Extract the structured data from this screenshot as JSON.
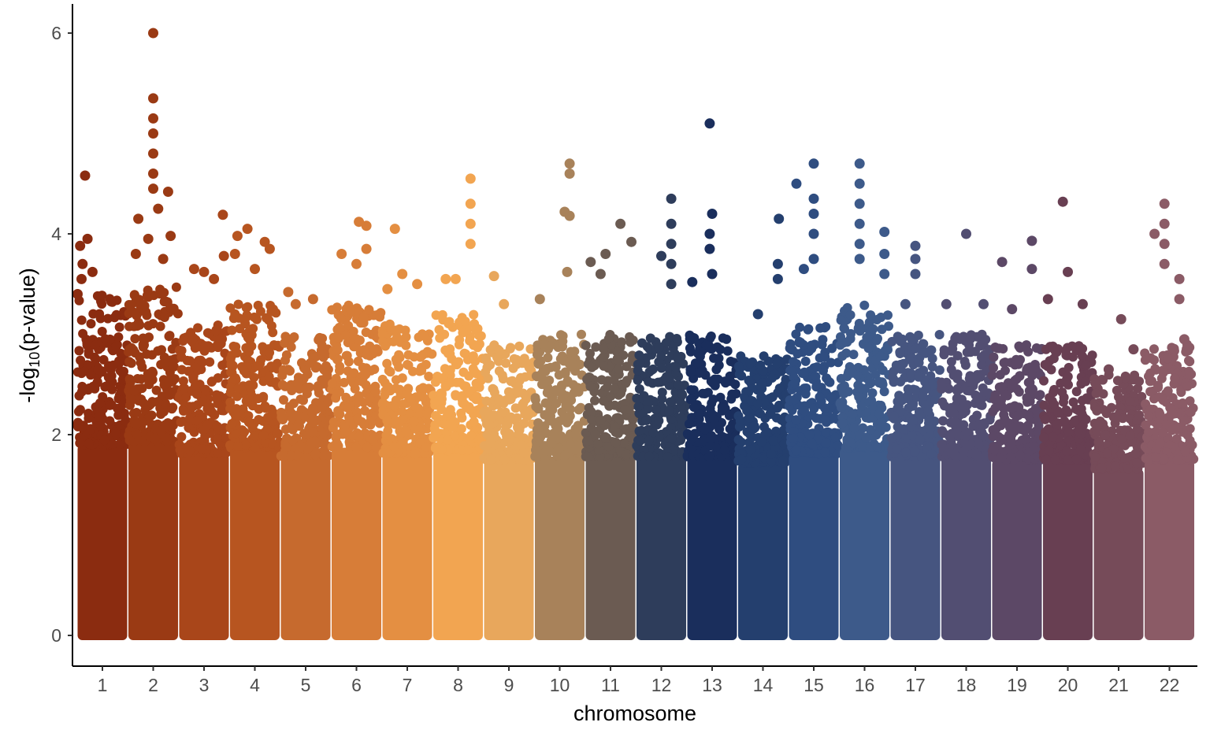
{
  "chart_data": {
    "type": "scatter",
    "subtype": "manhattan",
    "title": "",
    "xlabel": "chromosome",
    "ylabel": {
      "prefix": "-log",
      "subscript": "10",
      "suffix": "(p-value)"
    },
    "ylim": [
      0,
      6.3
    ],
    "yticks": [
      0,
      2,
      4,
      6
    ],
    "grid": false,
    "legend": "none",
    "categories": [
      "1",
      "2",
      "3",
      "4",
      "5",
      "6",
      "7",
      "8",
      "9",
      "10",
      "11",
      "12",
      "13",
      "14",
      "15",
      "16",
      "17",
      "18",
      "19",
      "20",
      "21",
      "22"
    ],
    "colors": [
      "#8b2c10",
      "#9a3a14",
      "#a9461a",
      "#b75520",
      "#c66a2e",
      "#d77d38",
      "#e48f42",
      "#f2a551",
      "#e8a75c",
      "#a8825a",
      "#6b5b52",
      "#2e3d5b",
      "#1a2e5c",
      "#243f6e",
      "#2f4d80",
      "#3d5a8a",
      "#465580",
      "#524e72",
      "#5c4866",
      "#683f52",
      "#764b59",
      "#8b5b66"
    ],
    "series": [
      {
        "name": "1",
        "band_max": 3.4,
        "peaks": [
          [
            0.15,
            4.58
          ],
          [
            0.05,
            3.88
          ],
          [
            0.1,
            3.7
          ],
          [
            0.2,
            3.95
          ],
          [
            0.3,
            3.62
          ],
          [
            0.0,
            3.4
          ],
          [
            0.08,
            3.55
          ]
        ]
      },
      {
        "name": "2",
        "band_max": 3.5,
        "peaks": [
          [
            0.5,
            6.0
          ],
          [
            0.5,
            5.35
          ],
          [
            0.5,
            5.15
          ],
          [
            0.5,
            5.0
          ],
          [
            0.5,
            4.8
          ],
          [
            0.5,
            4.6
          ],
          [
            0.5,
            4.45
          ],
          [
            0.8,
            4.42
          ],
          [
            0.2,
            4.15
          ],
          [
            0.6,
            4.25
          ],
          [
            0.4,
            3.95
          ],
          [
            0.85,
            3.98
          ],
          [
            0.7,
            3.75
          ],
          [
            0.15,
            3.8
          ]
        ]
      },
      {
        "name": "3",
        "band_max": 3.1,
        "peaks": [
          [
            0.88,
            4.19
          ],
          [
            0.5,
            3.62
          ],
          [
            0.3,
            3.65
          ],
          [
            0.9,
            3.78
          ],
          [
            0.7,
            3.55
          ]
        ]
      },
      {
        "name": "4",
        "band_max": 3.3,
        "peaks": [
          [
            0.35,
            4.05
          ],
          [
            0.15,
            3.98
          ],
          [
            0.7,
            3.92
          ],
          [
            0.8,
            3.85
          ],
          [
            0.5,
            3.65
          ],
          [
            0.1,
            3.8
          ]
        ]
      },
      {
        "name": "5",
        "band_max": 3.0,
        "peaks": [
          [
            0.15,
            3.42
          ],
          [
            0.65,
            3.35
          ],
          [
            0.3,
            3.3
          ]
        ]
      },
      {
        "name": "6",
        "band_max": 3.3,
        "peaks": [
          [
            0.55,
            4.12
          ],
          [
            0.7,
            4.08
          ],
          [
            0.2,
            3.8
          ],
          [
            0.7,
            3.85
          ],
          [
            0.5,
            3.7
          ]
        ]
      },
      {
        "name": "7",
        "band_max": 3.1,
        "peaks": [
          [
            0.25,
            4.05
          ],
          [
            0.4,
            3.6
          ],
          [
            0.7,
            3.5
          ],
          [
            0.1,
            3.45
          ]
        ]
      },
      {
        "name": "8",
        "band_max": 3.2,
        "peaks": [
          [
            0.75,
            4.55
          ],
          [
            0.75,
            4.3
          ],
          [
            0.75,
            4.1
          ],
          [
            0.75,
            3.9
          ],
          [
            0.25,
            3.55
          ],
          [
            0.45,
            3.55
          ]
        ]
      },
      {
        "name": "9",
        "band_max": 2.9,
        "peaks": [
          [
            0.2,
            3.58
          ],
          [
            0.4,
            3.3
          ]
        ]
      },
      {
        "name": "10",
        "band_max": 3.0,
        "peaks": [
          [
            0.7,
            4.7
          ],
          [
            0.7,
            4.6
          ],
          [
            0.6,
            4.22
          ],
          [
            0.7,
            4.18
          ],
          [
            0.65,
            3.62
          ],
          [
            0.1,
            3.35
          ]
        ]
      },
      {
        "name": "11",
        "band_max": 3.0,
        "peaks": [
          [
            0.7,
            4.1
          ],
          [
            0.92,
            3.92
          ],
          [
            0.4,
            3.8
          ],
          [
            0.1,
            3.72
          ],
          [
            0.3,
            3.6
          ]
        ]
      },
      {
        "name": "12",
        "band_max": 3.0,
        "peaks": [
          [
            0.7,
            4.35
          ],
          [
            0.7,
            4.1
          ],
          [
            0.7,
            3.9
          ],
          [
            0.5,
            3.78
          ],
          [
            0.7,
            3.7
          ],
          [
            0.7,
            3.5
          ]
        ]
      },
      {
        "name": "13",
        "band_max": 3.0,
        "peaks": [
          [
            0.45,
            5.1
          ],
          [
            0.5,
            4.2
          ],
          [
            0.45,
            4.0
          ],
          [
            0.45,
            3.85
          ],
          [
            0.1,
            3.52
          ],
          [
            0.5,
            3.6
          ]
        ]
      },
      {
        "name": "14",
        "band_max": 2.8,
        "peaks": [
          [
            0.82,
            4.15
          ],
          [
            0.8,
            3.7
          ],
          [
            0.8,
            3.55
          ],
          [
            0.4,
            3.2
          ]
        ]
      },
      {
        "name": "15",
        "band_max": 3.1,
        "peaks": [
          [
            0.5,
            4.7
          ],
          [
            0.15,
            4.5
          ],
          [
            0.5,
            4.35
          ],
          [
            0.5,
            4.2
          ],
          [
            0.5,
            4.0
          ],
          [
            0.5,
            3.75
          ],
          [
            0.3,
            3.65
          ]
        ]
      },
      {
        "name": "16",
        "band_max": 3.3,
        "peaks": [
          [
            0.4,
            4.7
          ],
          [
            0.4,
            4.5
          ],
          [
            0.4,
            4.3
          ],
          [
            0.4,
            4.1
          ],
          [
            0.4,
            3.9
          ],
          [
            0.4,
            3.75
          ],
          [
            0.9,
            4.02
          ],
          [
            0.9,
            3.8
          ],
          [
            0.9,
            3.6
          ]
        ]
      },
      {
        "name": "17",
        "band_max": 3.0,
        "peaks": [
          [
            0.5,
            3.88
          ],
          [
            0.5,
            3.75
          ],
          [
            0.5,
            3.6
          ],
          [
            0.3,
            3.3
          ]
        ]
      },
      {
        "name": "18",
        "band_max": 3.0,
        "peaks": [
          [
            0.5,
            4.0
          ],
          [
            0.1,
            3.3
          ],
          [
            0.85,
            3.3
          ]
        ]
      },
      {
        "name": "19",
        "band_max": 2.9,
        "peaks": [
          [
            0.2,
            3.72
          ],
          [
            0.8,
            3.93
          ],
          [
            0.8,
            3.65
          ],
          [
            0.4,
            3.25
          ]
        ]
      },
      {
        "name": "20",
        "band_max": 2.9,
        "peaks": [
          [
            0.4,
            4.32
          ],
          [
            0.5,
            3.62
          ],
          [
            0.1,
            3.35
          ],
          [
            0.8,
            3.3
          ]
        ]
      },
      {
        "name": "21",
        "band_max": 2.6,
        "peaks": [
          [
            0.55,
            3.15
          ],
          [
            0.8,
            2.85
          ],
          [
            0.3,
            2.65
          ]
        ]
      },
      {
        "name": "22",
        "band_max": 2.9,
        "peaks": [
          [
            0.4,
            4.3
          ],
          [
            0.4,
            4.1
          ],
          [
            0.4,
            3.9
          ],
          [
            0.4,
            3.7
          ],
          [
            0.2,
            4.0
          ],
          [
            0.7,
            3.55
          ],
          [
            0.7,
            3.35
          ],
          [
            0.8,
            2.95
          ]
        ]
      }
    ]
  }
}
